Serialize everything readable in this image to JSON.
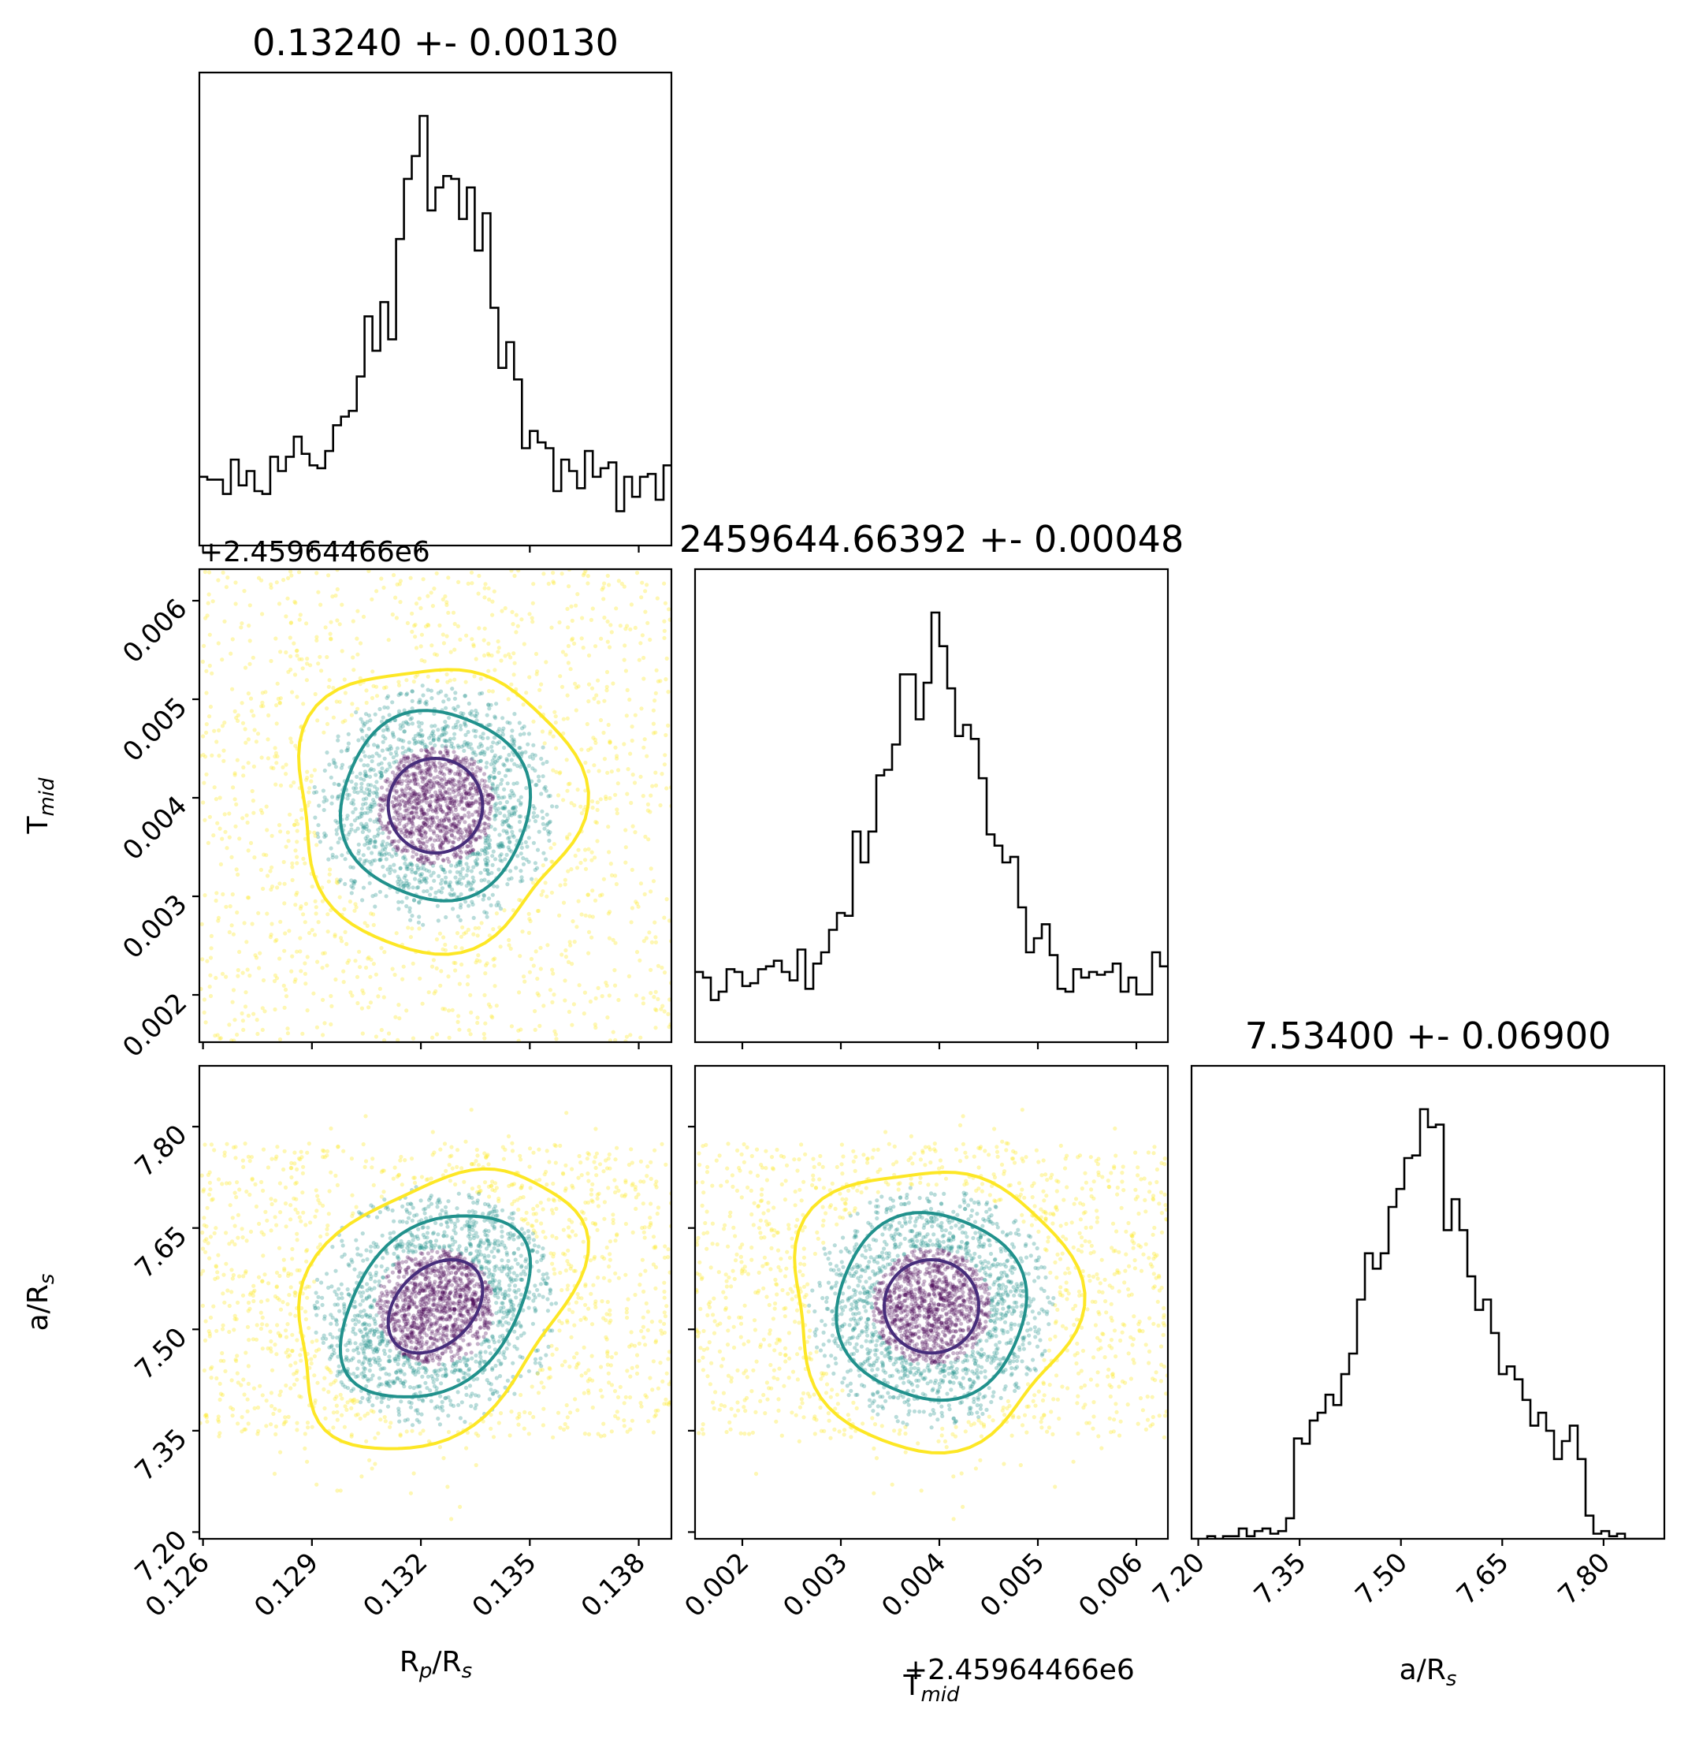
{
  "colors": {
    "points_outer": "#fde725",
    "points_mid": "#21918c",
    "points_core": "#440154",
    "contour_1sigma": "#472d7b",
    "contour_2sigma": "#21918c",
    "contour_3sigma": "#fde725",
    "histogram": "#000000"
  },
  "chart_data": {
    "type": "scatter",
    "subtype": "corner-plot",
    "parameters": [
      {
        "label": "R_p/R_s",
        "title": "0.13240 +- 0.00130",
        "median": 0.1324,
        "sigma": 0.0013,
        "range": [
          0.1259,
          0.1389
        ],
        "ticks": [
          "0.126",
          "0.129",
          "0.132",
          "0.135",
          "0.138"
        ],
        "tick_values": [
          0.126,
          0.129,
          0.132,
          0.135,
          0.138
        ]
      },
      {
        "label": "T_mid",
        "title": "2459644.66392 +- 0.00048",
        "median": 0.00392,
        "sigma": 0.00048,
        "range": [
          0.00152,
          0.00632
        ],
        "ticks": [
          "0.002",
          "0.003",
          "0.004",
          "0.005",
          "0.006"
        ],
        "tick_values": [
          0.002,
          0.003,
          0.004,
          0.005,
          0.006
        ],
        "offset": "+2.45964466e6"
      },
      {
        "label": "a/R_s",
        "title": "7.53400 +- 0.06900",
        "median": 7.534,
        "sigma": 0.069,
        "range": [
          7.19,
          7.89
        ],
        "ticks": [
          "7.20",
          "7.35",
          "7.50",
          "7.65",
          "7.80"
        ],
        "tick_values": [
          7.2,
          7.35,
          7.5,
          7.65,
          7.8
        ]
      }
    ],
    "hist_shapes": {
      "R_p/R_s": "peaked at 0.1324 with broad tails across the full range",
      "T_mid": "peaked at 0.00392 with broad tails across the full range",
      "a/R_s": "peaked at 7.534; flat shoulder from 7.34 to 7.77, zero outside"
    },
    "contours": [
      "1-sigma",
      "2-sigma",
      "3-sigma"
    ]
  }
}
